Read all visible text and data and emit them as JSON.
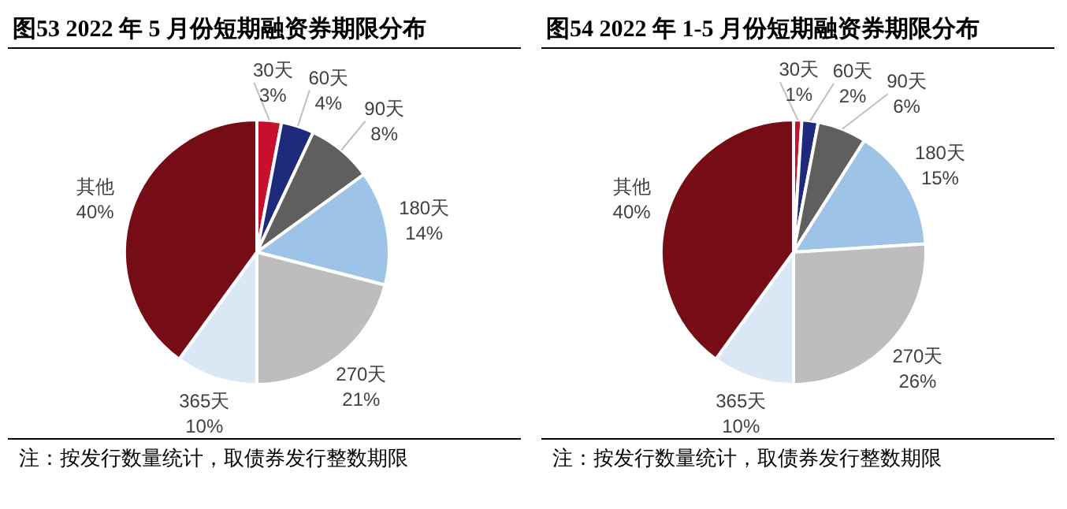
{
  "chart_data": [
    {
      "type": "pie",
      "title": "图53   2022 年 5 月份短期融资券期限分布",
      "categories": [
        "30天",
        "60天",
        "90天",
        "180天",
        "270天",
        "365天",
        "其他"
      ],
      "values": [
        3,
        4,
        8,
        14,
        21,
        10,
        40
      ],
      "value_labels": [
        "3%",
        "4%",
        "8%",
        "14%",
        "21%",
        "10%",
        "40%"
      ],
      "colors": [
        "#c8102e",
        "#1f2a7c",
        "#5f5f5f",
        "#9dc3e6",
        "#bdbdbd",
        "#dae8f6",
        "#760c16"
      ],
      "annotations": [
        "注：按发行数量统计，取债券发行整数期限"
      ]
    },
    {
      "type": "pie",
      "title": "图54   2022 年 1-5 月份短期融资券期限分布",
      "categories": [
        "30天",
        "60天",
        "90天",
        "180天",
        "270天",
        "365天",
        "其他"
      ],
      "values": [
        1,
        2,
        6,
        15,
        26,
        10,
        40
      ],
      "value_labels": [
        "1%",
        "2%",
        "6%",
        "15%",
        "26%",
        "10%",
        "40%"
      ],
      "colors": [
        "#c8102e",
        "#1f2a7c",
        "#5f5f5f",
        "#9dc3e6",
        "#bdbdbd",
        "#dae8f6",
        "#760c16"
      ],
      "annotations": [
        "注：按发行数量统计，取债券发行整数期限"
      ]
    }
  ]
}
